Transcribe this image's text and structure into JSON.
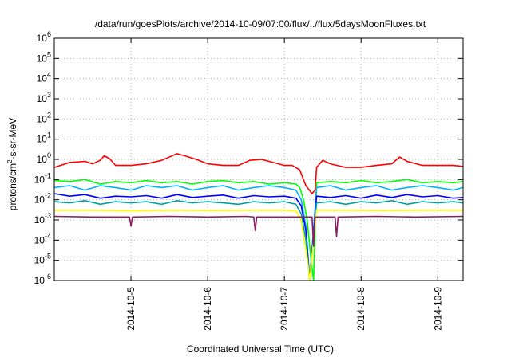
{
  "chart_data": {
    "type": "line",
    "title": "/data/run/goesPlots/archive/2014-10-09/07:00/flux/../flux/5daysMoonFluxes.txt",
    "xlabel": "Coordinated Universal Time (UTC)",
    "ylabel_main": "protons/cm",
    "ylabel_sup": "2",
    "ylabel_tail": "-s-sr-MeV",
    "yscale": "log",
    "ylim": [
      1e-06,
      1000000.0
    ],
    "xlim_days": [
      4.0,
      9.33
    ],
    "y_ticks": [
      {
        "v": 1e-06,
        "base": "10",
        "exp": "-6"
      },
      {
        "v": 1e-05,
        "base": "10",
        "exp": "-5"
      },
      {
        "v": 0.0001,
        "base": "10",
        "exp": "-4"
      },
      {
        "v": 0.001,
        "base": "10",
        "exp": "-3"
      },
      {
        "v": 0.01,
        "base": "10",
        "exp": "-2"
      },
      {
        "v": 0.1,
        "base": "10",
        "exp": "-1"
      },
      {
        "v": 1.0,
        "base": "10",
        "exp": "0"
      },
      {
        "v": 10.0,
        "base": "10",
        "exp": "1"
      },
      {
        "v": 100.0,
        "base": "10",
        "exp": "2"
      },
      {
        "v": 1000.0,
        "base": "10",
        "exp": "3"
      },
      {
        "v": 10000.0,
        "base": "10",
        "exp": "4"
      },
      {
        "v": 100000.0,
        "base": "10",
        "exp": "5"
      },
      {
        "v": 1000000.0,
        "base": "10",
        "exp": "6"
      }
    ],
    "x_ticks": [
      {
        "day": 5,
        "label": "2014-10-5"
      },
      {
        "day": 6,
        "label": "2014-10-6"
      },
      {
        "day": 7,
        "label": "2014-10-7"
      },
      {
        "day": 8,
        "label": "2014-10-8"
      },
      {
        "day": 9,
        "label": "2014-10-9"
      }
    ],
    "grid": true,
    "series": [
      {
        "color": "#ff0000",
        "points": [
          [
            4.0,
            0.4
          ],
          [
            4.2,
            0.7
          ],
          [
            4.4,
            0.8
          ],
          [
            4.5,
            0.6
          ],
          [
            4.6,
            0.9
          ],
          [
            4.65,
            1.5
          ],
          [
            4.72,
            1.1
          ],
          [
            4.8,
            0.5
          ],
          [
            5.0,
            0.5
          ],
          [
            5.2,
            0.6
          ],
          [
            5.4,
            0.9
          ],
          [
            5.6,
            1.9
          ],
          [
            5.7,
            1.5
          ],
          [
            5.85,
            1.0
          ],
          [
            6.0,
            0.6
          ],
          [
            6.2,
            0.5
          ],
          [
            6.4,
            0.5
          ],
          [
            6.55,
            0.9
          ],
          [
            6.7,
            1.0
          ],
          [
            6.8,
            0.8
          ],
          [
            7.0,
            0.5
          ],
          [
            7.1,
            0.5
          ],
          [
            7.2,
            0.3
          ],
          [
            7.28,
            0.05
          ],
          [
            7.36,
            0.02
          ],
          [
            7.4,
            0.03
          ],
          [
            7.42,
            0.4
          ],
          [
            7.5,
            0.9
          ],
          [
            7.6,
            0.6
          ],
          [
            7.8,
            0.4
          ],
          [
            8.0,
            0.4
          ],
          [
            8.2,
            0.5
          ],
          [
            8.4,
            0.6
          ],
          [
            8.5,
            1.3
          ],
          [
            8.6,
            0.8
          ],
          [
            8.8,
            0.5
          ],
          [
            9.0,
            0.5
          ],
          [
            9.2,
            0.5
          ],
          [
            9.33,
            0.45
          ]
        ]
      },
      {
        "color": "#00ff00",
        "points": [
          [
            4.0,
            0.09
          ],
          [
            4.2,
            0.08
          ],
          [
            4.4,
            0.1
          ],
          [
            4.6,
            0.06
          ],
          [
            4.8,
            0.08
          ],
          [
            5.0,
            0.07
          ],
          [
            5.2,
            0.09
          ],
          [
            5.4,
            0.07
          ],
          [
            5.6,
            0.08
          ],
          [
            5.8,
            0.06
          ],
          [
            6.0,
            0.08
          ],
          [
            6.2,
            0.09
          ],
          [
            6.4,
            0.07
          ],
          [
            6.6,
            0.08
          ],
          [
            6.8,
            0.06
          ],
          [
            7.0,
            0.07
          ],
          [
            7.15,
            0.06
          ],
          [
            7.2,
            0.04
          ],
          [
            7.25,
            0.01
          ],
          [
            7.3,
            0.0008
          ],
          [
            7.34,
            2e-05
          ],
          [
            7.38,
            1e-06
          ],
          [
            7.42,
            0.07
          ],
          [
            7.6,
            0.08
          ],
          [
            7.8,
            0.07
          ],
          [
            8.0,
            0.09
          ],
          [
            8.2,
            0.07
          ],
          [
            8.4,
            0.08
          ],
          [
            8.6,
            0.1
          ],
          [
            8.8,
            0.07
          ],
          [
            9.0,
            0.08
          ],
          [
            9.2,
            0.07
          ],
          [
            9.33,
            0.08
          ]
        ]
      },
      {
        "color": "#00b0ff",
        "points": [
          [
            4.0,
            0.04
          ],
          [
            4.2,
            0.05
          ],
          [
            4.4,
            0.03
          ],
          [
            4.6,
            0.05
          ],
          [
            4.8,
            0.04
          ],
          [
            5.0,
            0.03
          ],
          [
            5.2,
            0.05
          ],
          [
            5.4,
            0.04
          ],
          [
            5.6,
            0.05
          ],
          [
            5.8,
            0.03
          ],
          [
            6.0,
            0.04
          ],
          [
            6.2,
            0.05
          ],
          [
            6.4,
            0.03
          ],
          [
            6.6,
            0.04
          ],
          [
            6.8,
            0.05
          ],
          [
            7.0,
            0.04
          ],
          [
            7.15,
            0.03
          ],
          [
            7.22,
            0.01
          ],
          [
            7.28,
            0.0005
          ],
          [
            7.33,
            1e-06
          ],
          [
            7.42,
            0.04
          ],
          [
            7.6,
            0.05
          ],
          [
            7.8,
            0.03
          ],
          [
            8.0,
            0.04
          ],
          [
            8.2,
            0.05
          ],
          [
            8.4,
            0.03
          ],
          [
            8.6,
            0.04
          ],
          [
            8.8,
            0.05
          ],
          [
            9.0,
            0.04
          ],
          [
            9.2,
            0.03
          ],
          [
            9.33,
            0.04
          ]
        ]
      },
      {
        "color": "#0000ff",
        "points": [
          [
            4.0,
            0.02
          ],
          [
            4.2,
            0.015
          ],
          [
            4.4,
            0.018
          ],
          [
            4.6,
            0.012
          ],
          [
            4.8,
            0.015
          ],
          [
            5.0,
            0.014
          ],
          [
            5.2,
            0.016
          ],
          [
            5.4,
            0.012
          ],
          [
            5.6,
            0.018
          ],
          [
            5.8,
            0.013
          ],
          [
            6.0,
            0.015
          ],
          [
            6.2,
            0.017
          ],
          [
            6.4,
            0.012
          ],
          [
            6.6,
            0.016
          ],
          [
            6.8,
            0.014
          ],
          [
            7.0,
            0.015
          ],
          [
            7.15,
            0.012
          ],
          [
            7.22,
            0.005
          ],
          [
            7.28,
            0.0003
          ],
          [
            7.33,
            1e-06
          ],
          [
            7.42,
            0.015
          ],
          [
            7.6,
            0.013
          ],
          [
            7.8,
            0.016
          ],
          [
            8.0,
            0.012
          ],
          [
            8.2,
            0.017
          ],
          [
            8.4,
            0.013
          ],
          [
            8.6,
            0.018
          ],
          [
            8.8,
            0.014
          ],
          [
            9.0,
            0.016
          ],
          [
            9.2,
            0.012
          ],
          [
            9.33,
            0.013
          ]
        ]
      },
      {
        "color": "#00a0a0",
        "points": [
          [
            4.0,
            0.008
          ],
          [
            4.2,
            0.007
          ],
          [
            4.4,
            0.009
          ],
          [
            4.6,
            0.006
          ],
          [
            4.8,
            0.008
          ],
          [
            5.0,
            0.007
          ],
          [
            5.2,
            0.008
          ],
          [
            5.4,
            0.006
          ],
          [
            5.6,
            0.009
          ],
          [
            5.8,
            0.007
          ],
          [
            6.0,
            0.008
          ],
          [
            6.2,
            0.007
          ],
          [
            6.4,
            0.006
          ],
          [
            6.6,
            0.008
          ],
          [
            6.8,
            0.007
          ],
          [
            7.0,
            0.008
          ],
          [
            7.15,
            0.006
          ],
          [
            7.22,
            0.002
          ],
          [
            7.28,
            0.0001
          ],
          [
            7.33,
            1e-06
          ],
          [
            7.42,
            0.007
          ],
          [
            7.6,
            0.008
          ],
          [
            7.8,
            0.006
          ],
          [
            8.0,
            0.008
          ],
          [
            8.2,
            0.007
          ],
          [
            8.4,
            0.009
          ],
          [
            8.6,
            0.006
          ],
          [
            8.8,
            0.008
          ],
          [
            9.0,
            0.007
          ],
          [
            9.2,
            0.008
          ],
          [
            9.33,
            0.007
          ]
        ]
      },
      {
        "color": "#ffff00",
        "points": [
          [
            4.0,
            0.003
          ],
          [
            4.5,
            0.003
          ],
          [
            5.0,
            0.0028
          ],
          [
            5.5,
            0.003
          ],
          [
            6.0,
            0.0029
          ],
          [
            6.5,
            0.003
          ],
          [
            7.0,
            0.003
          ],
          [
            7.15,
            0.0028
          ],
          [
            7.22,
            0.001
          ],
          [
            7.3,
            1e-05
          ],
          [
            7.33,
            1e-06
          ],
          [
            7.42,
            0.003
          ],
          [
            7.8,
            0.003
          ],
          [
            8.3,
            0.0029
          ],
          [
            8.8,
            0.003
          ],
          [
            9.33,
            0.003
          ]
        ]
      },
      {
        "color": "#8b2060",
        "points": [
          [
            4.0,
            0.0015
          ],
          [
            4.5,
            0.0014
          ],
          [
            4.98,
            0.0014
          ],
          [
            5.0,
            0.0005
          ],
          [
            5.02,
            0.0014
          ],
          [
            5.5,
            0.0015
          ],
          [
            6.0,
            0.0014
          ],
          [
            6.5,
            0.0015
          ],
          [
            6.6,
            0.0014
          ],
          [
            6.62,
            0.0003
          ],
          [
            6.64,
            0.0014
          ],
          [
            7.0,
            0.0014
          ],
          [
            7.3,
            0.0014
          ],
          [
            7.36,
            0.0014
          ],
          [
            7.38,
            5e-05
          ],
          [
            7.4,
            0.0014
          ],
          [
            7.66,
            0.0014
          ],
          [
            7.68,
            0.00015
          ],
          [
            7.7,
            0.0014
          ],
          [
            8.2,
            0.0015
          ],
          [
            8.7,
            0.0014
          ],
          [
            9.33,
            0.0015
          ]
        ]
      }
    ]
  }
}
